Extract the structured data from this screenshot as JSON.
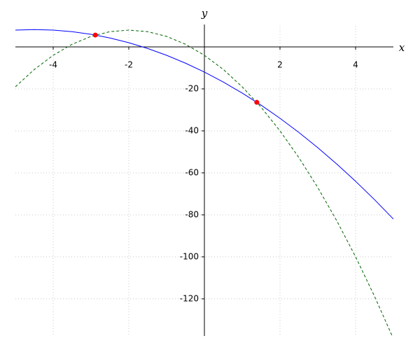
{
  "chart_data": {
    "type": "line",
    "x_label": "x",
    "y_label": "y",
    "x": [
      -5,
      -4.5,
      -4,
      -3.5,
      -3,
      -2.5,
      -2,
      -1.5,
      -1,
      -0.5,
      0,
      0.5,
      1,
      1.5,
      2,
      2.5,
      3,
      3.5,
      4,
      4.5,
      5
    ],
    "series": [
      {
        "color": "#0000ff",
        "dash": false,
        "values": [
          8,
          8.25,
          8,
          7.25,
          6,
          4.25,
          2,
          -0.75,
          -4,
          -7.75,
          -12,
          -16.75,
          -22,
          -27.75,
          -34,
          -40.75,
          -48,
          -55.75,
          -64,
          -72.75,
          -82
        ]
      },
      {
        "color": "#006400",
        "dash": true,
        "values": [
          -19,
          -10.75,
          -4,
          1.25,
          5,
          7.25,
          8,
          7.25,
          5,
          1.25,
          -4,
          -10.75,
          -19,
          -28.75,
          -40,
          -52.75,
          -67,
          -82.75,
          -100,
          -118.75,
          -139
        ]
      }
    ],
    "points": {
      "color": "#ff0000",
      "x": [
        -2.886,
        1.386
      ],
      "y": [
        5.64,
        -26.4
      ]
    },
    "xlim": [
      -5,
      5
    ],
    "ylim": [
      -137.7,
      10
    ],
    "xticks": [
      -4,
      -2,
      2,
      4
    ],
    "yticks": [
      -120,
      -100,
      -80,
      -60,
      -40,
      -20
    ],
    "grid": true
  }
}
